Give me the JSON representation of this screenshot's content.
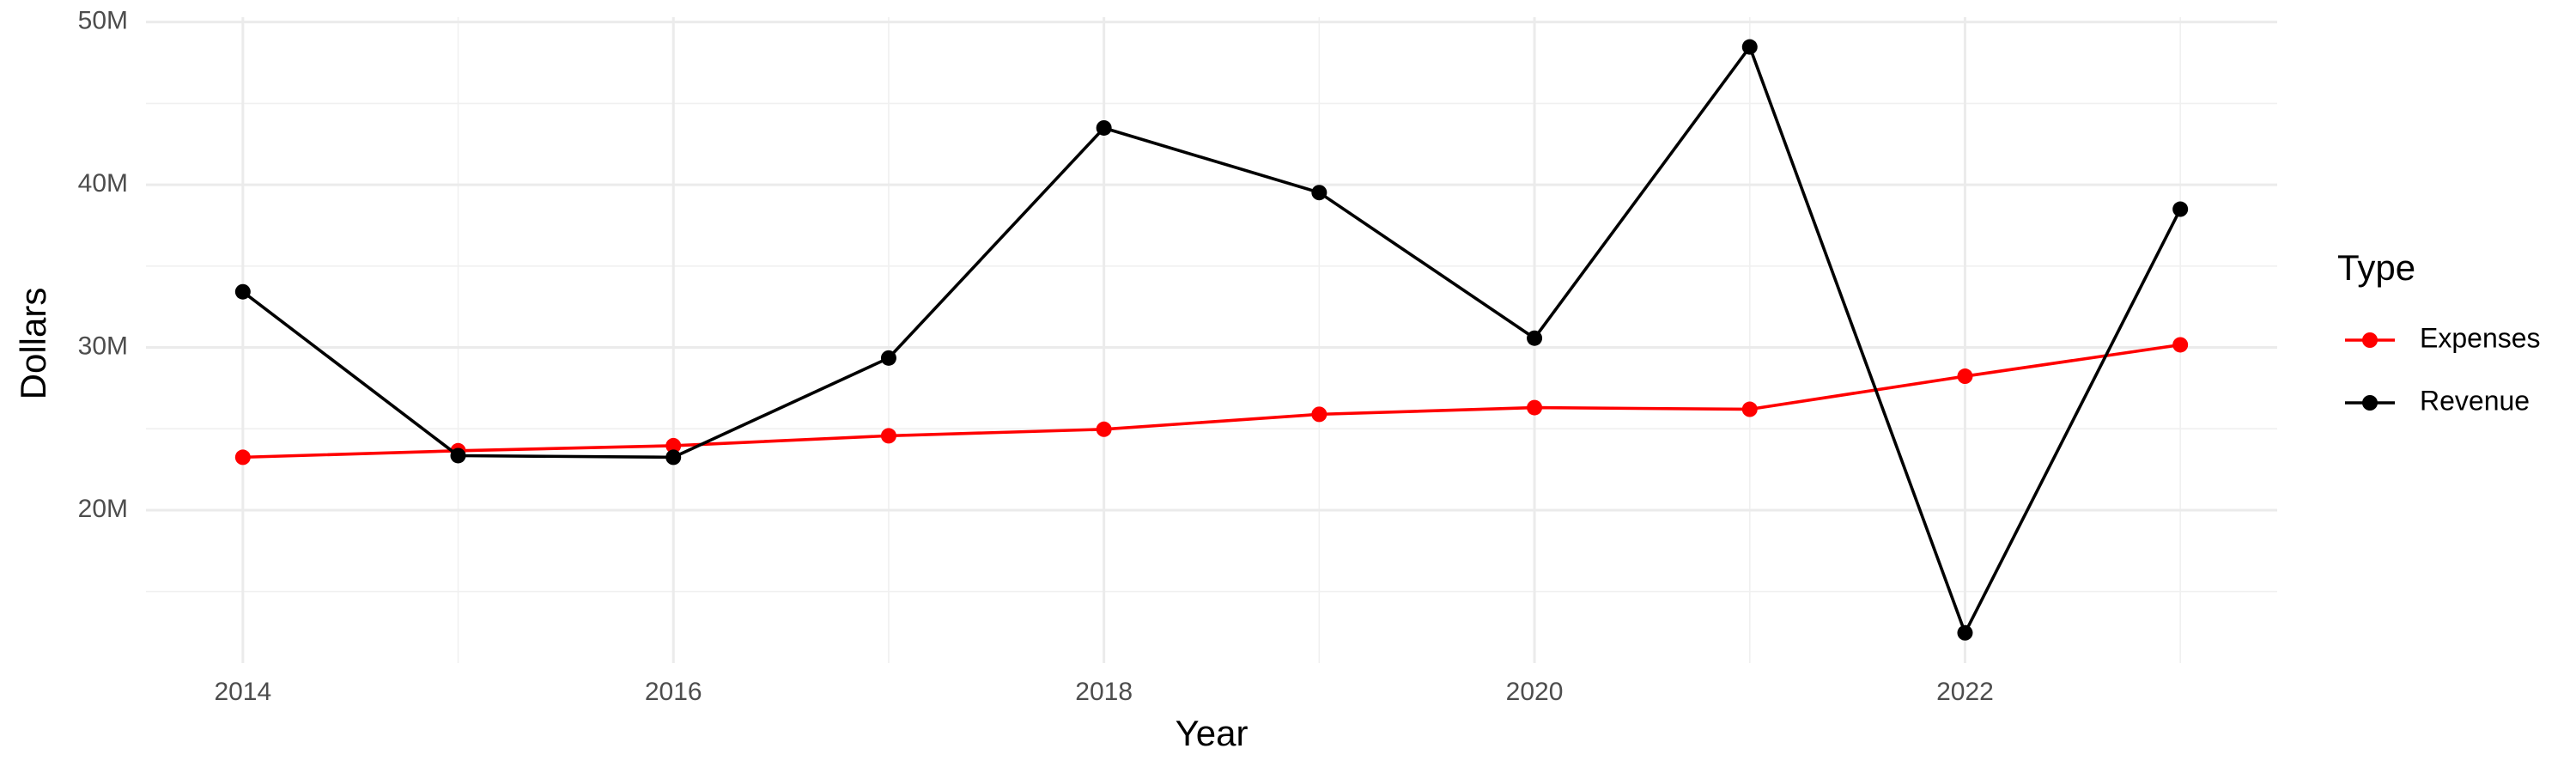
{
  "chart_data": {
    "type": "line",
    "x_label": "Year",
    "y_label": "Dollars",
    "legend_title": "Type",
    "x": [
      2014,
      2015,
      2016,
      2017,
      2018,
      2019,
      2020,
      2021,
      2022,
      2023
    ],
    "series": [
      {
        "name": "Expenses",
        "color": "#ff0000",
        "values": [
          23250000,
          23650000,
          23960000,
          24570000,
          24970000,
          25890000,
          26300000,
          26200000,
          28230000,
          30160000
        ]
      },
      {
        "name": "Revenue",
        "color": "#000000",
        "values": [
          33420000,
          23350000,
          23250000,
          29350000,
          43490000,
          39520000,
          30570000,
          48470000,
          12460000,
          38500000
        ]
      }
    ],
    "xlim": [
      2013.55,
      2023.45
    ],
    "xticks": [
      2014,
      2016,
      2018,
      2020,
      2022
    ],
    "ylim": [
      10600000,
      50300000
    ],
    "yticks": [
      {
        "value": 20000000,
        "label": "20M"
      },
      {
        "value": 30000000,
        "label": "30M"
      },
      {
        "value": 40000000,
        "label": "40M"
      },
      {
        "value": 50000000,
        "label": "50M"
      }
    ],
    "grid": true,
    "minor_grid": true,
    "legend_position": "right"
  }
}
